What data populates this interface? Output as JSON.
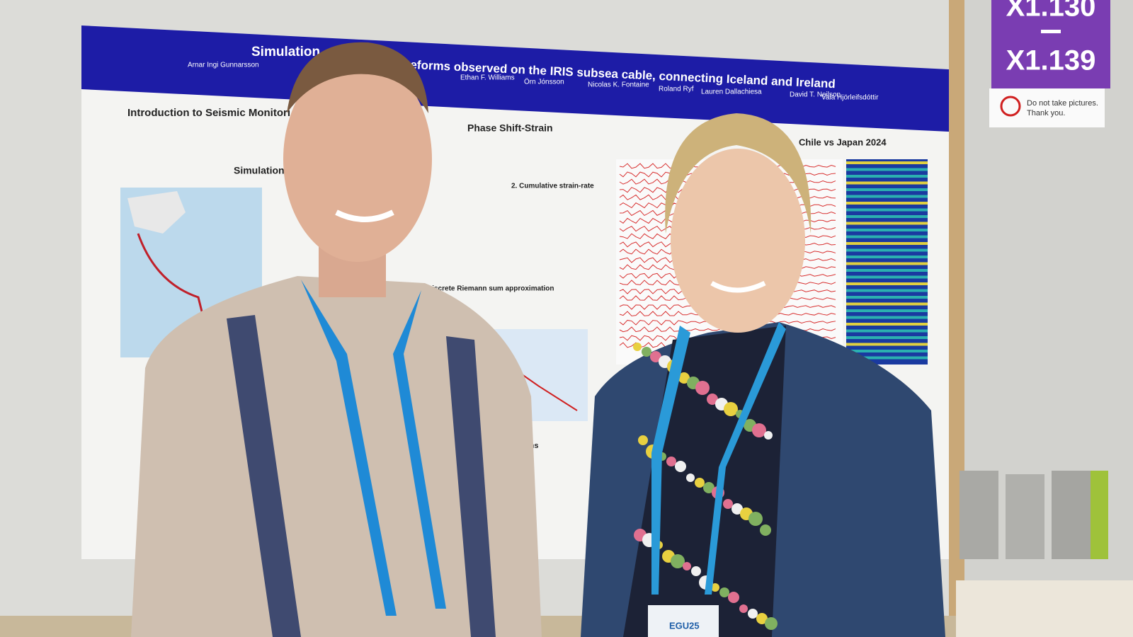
{
  "poster": {
    "title_left": "Simulation",
    "title_right": "veforms observed on the IRIS subsea cable, connecting Iceland and Ireland",
    "authors": [
      "Arnar Ingi Gunnarsson",
      "Ethan F. Williams",
      "Örn Jónsson",
      "Nicolas K. Fontaine",
      "Roland Ryf",
      "Lauren Dallachiesa",
      "David T. Neilson",
      "Vala Hjörleifsdóttir"
    ],
    "sections": [
      "Introduction to Seismic Monitori",
      "Simulation",
      "Phase Shift-Strain",
      "2. Cumulative strain-rate",
      "Discrete Riemann sum approximation",
      "usions",
      "Chile vs Japan 2024"
    ]
  },
  "sign": {
    "codes": [
      "X1.130",
      "X1.139"
    ],
    "notice": [
      "Do not take pictures.",
      "Thank you."
    ]
  },
  "badge": "EGU25"
}
